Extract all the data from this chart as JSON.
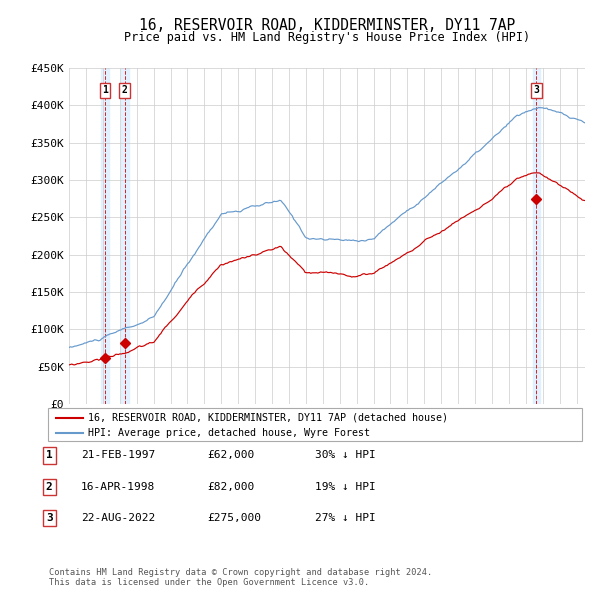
{
  "title": "16, RESERVOIR ROAD, KIDDERMINSTER, DY11 7AP",
  "subtitle": "Price paid vs. HM Land Registry's House Price Index (HPI)",
  "ylim": [
    0,
    450000
  ],
  "yticks": [
    0,
    50000,
    100000,
    150000,
    200000,
    250000,
    300000,
    350000,
    400000,
    450000
  ],
  "sale_years": [
    1997.125,
    1998.292,
    2022.625
  ],
  "sale_prices": [
    62000,
    82000,
    275000
  ],
  "sale_labels": [
    "1",
    "2",
    "3"
  ],
  "legend_red": "16, RESERVOIR ROAD, KIDDERMINSTER, DY11 7AP (detached house)",
  "legend_blue": "HPI: Average price, detached house, Wyre Forest",
  "table_rows": [
    [
      "1",
      "21-FEB-1997",
      "£62,000",
      "30% ↓ HPI"
    ],
    [
      "2",
      "16-APR-1998",
      "£82,000",
      "19% ↓ HPI"
    ],
    [
      "3",
      "22-AUG-2022",
      "£275,000",
      "27% ↓ HPI"
    ]
  ],
  "footnote": "Contains HM Land Registry data © Crown copyright and database right 2024.\nThis data is licensed under the Open Government Licence v3.0.",
  "red_color": "#cc0000",
  "blue_color": "#6699cc",
  "shade_color": "#ddeeff",
  "grid_color": "#cccccc",
  "bg_color": "#ffffff",
  "sale_box_color": "#cc3333",
  "xlim_start": 1995.0,
  "xlim_end": 2025.5
}
